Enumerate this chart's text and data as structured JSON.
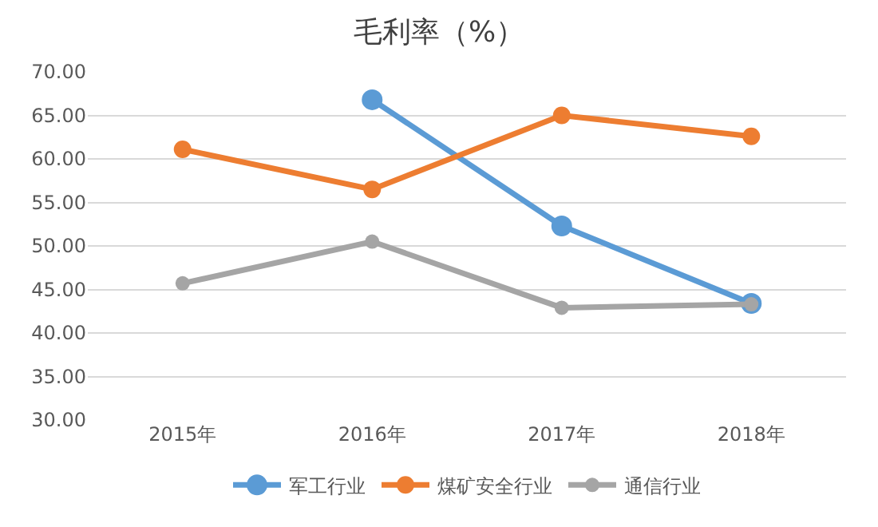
{
  "chart_data": {
    "type": "line",
    "title": "毛利率（%）",
    "categories": [
      "2015年",
      "2016年",
      "2017年",
      "2018年"
    ],
    "series": [
      {
        "name": "军工行业",
        "color": "#5b9bd5",
        "values": [
          null,
          66.8,
          52.3,
          43.4
        ]
      },
      {
        "name": "煤矿安全行业",
        "color": "#ed7d31",
        "values": [
          61.1,
          56.5,
          65.0,
          62.6
        ]
      },
      {
        "name": "通信行业",
        "color": "#a5a5a5",
        "values": [
          45.7,
          50.5,
          42.9,
          43.3
        ]
      }
    ],
    "ylim": [
      30,
      70
    ],
    "yticks": [
      {
        "value": 30,
        "label": "30.00"
      },
      {
        "value": 35,
        "label": "35.00"
      },
      {
        "value": 40,
        "label": "40.00"
      },
      {
        "value": 45,
        "label": "45.00"
      },
      {
        "value": 50,
        "label": "50.00"
      },
      {
        "value": 55,
        "label": "55.00"
      },
      {
        "value": 60,
        "label": "60.00"
      },
      {
        "value": 65,
        "label": "65.00"
      },
      {
        "value": 70,
        "label": "70.00"
      }
    ],
    "grid": "y",
    "legend": "bottom",
    "marker": "circle",
    "line_style": "solid"
  }
}
